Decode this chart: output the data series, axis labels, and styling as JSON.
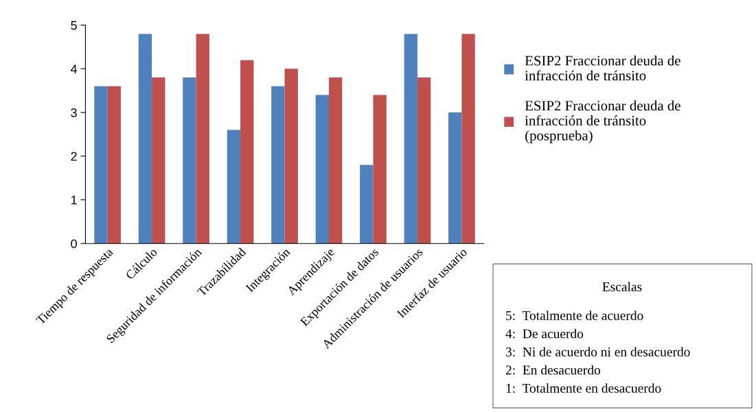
{
  "chart_data": {
    "type": "bar",
    "categories": [
      "Tiempo de respuesta",
      "Cálculo",
      "Seguridad de información",
      "Trazabilidad",
      "Integración",
      "Aprendizaje",
      "Exportación de datos",
      "Administración de usuarios",
      "Interfaz de usuario"
    ],
    "series": [
      {
        "name": "ESIP2 Fraccionar deuda de infracción de tránsito",
        "color": "#4f81bd",
        "values": [
          3.6,
          4.8,
          3.8,
          2.6,
          3.6,
          3.4,
          1.8,
          4.8,
          3.0
        ]
      },
      {
        "name": "ESIP2 Fraccionar deuda de infracción de tránsito (posprueba)",
        "color": "#c0504d",
        "values": [
          3.6,
          3.8,
          4.8,
          4.2,
          4.0,
          3.8,
          3.4,
          3.8,
          4.8
        ]
      }
    ],
    "ylim": [
      0,
      5
    ],
    "yticks": [
      0,
      1,
      2,
      3,
      4,
      5
    ],
    "grid": false,
    "legend": "right",
    "annotations": [
      "Escalas",
      "5:  Totalmente de acuerdo",
      "4:  De acuerdo",
      "3:  Ni de acuerdo ni en desacuerdo",
      "2:  En desacuerdo",
      "1:  Totalmente en desacuerdo"
    ]
  }
}
